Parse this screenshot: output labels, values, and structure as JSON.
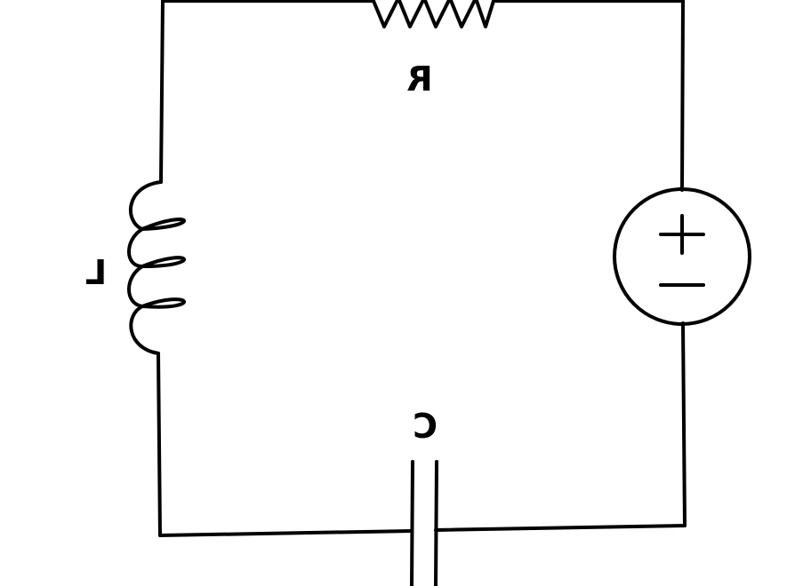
{
  "diagram": {
    "type": "series RLC circuit",
    "stroke_color": "#000000",
    "background_color": "#ffffff",
    "labels": {
      "resistor": "R",
      "inductor": "L",
      "capacitor": "C"
    },
    "source": {
      "kind": "voltage-source",
      "plus_symbol": "+",
      "minus_symbol": "−"
    },
    "text_orientation": "mirrored"
  }
}
